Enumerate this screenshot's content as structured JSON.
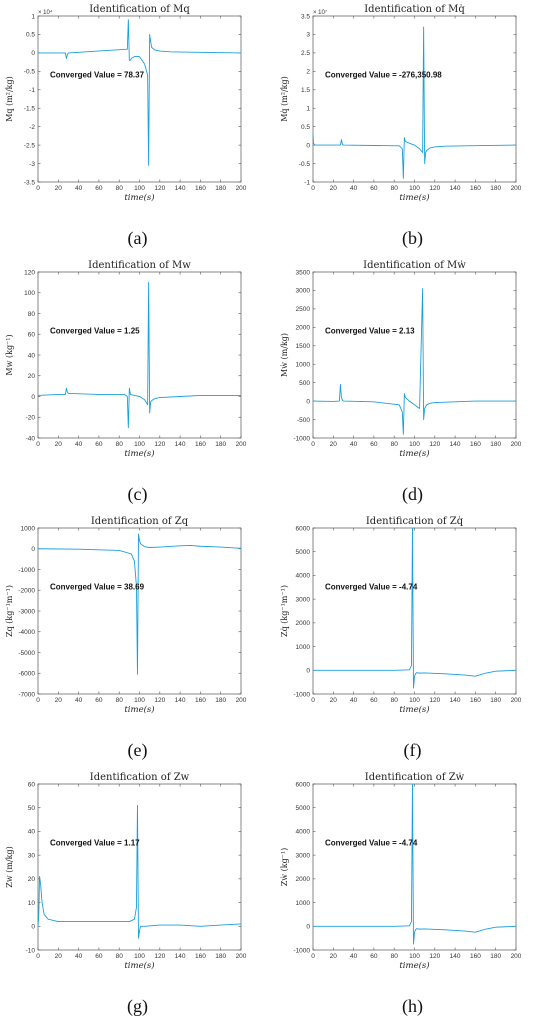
{
  "chart_data": [
    {
      "type": "line",
      "title": "Identification of Mq",
      "xlabel": "time(s)",
      "ylabel": "Mq (m²/kg)",
      "y_exponent": "× 10⁴",
      "xlim": [
        0,
        200
      ],
      "ylim": [
        -3.5,
        1
      ],
      "xticks": [
        0,
        20,
        40,
        60,
        80,
        100,
        120,
        140,
        160,
        180,
        200
      ],
      "yticks": [
        -3.5,
        -3,
        -2.5,
        -2,
        -1.5,
        -1,
        -0.5,
        0,
        0.5,
        1
      ],
      "annotation": "Converged Value = 78.37",
      "caption": "(a)",
      "color": "#1aa0d8",
      "series": [
        {
          "x": [
            0,
            27,
            28,
            29,
            30,
            88,
            89,
            90,
            91,
            92,
            95,
            100,
            105,
            108,
            109,
            110,
            111,
            112,
            115,
            120,
            130,
            150,
            200
          ],
          "y": [
            0,
            0,
            -0.15,
            -0.05,
            0,
            0.1,
            0.9,
            -0.2,
            -0.2,
            -0.15,
            -0.1,
            -0.1,
            -0.3,
            -0.6,
            -3.05,
            0.5,
            0.3,
            0.15,
            0.08,
            0.05,
            0.03,
            0.02,
            0
          ]
        }
      ]
    },
    {
      "type": "line",
      "title": "Identification of Mq̇",
      "xlabel": "time(s)",
      "ylabel": "Mq̇ (m²/kg)",
      "y_exponent": "× 10⁷",
      "xlim": [
        0,
        200
      ],
      "ylim": [
        -1,
        3.5
      ],
      "xticks": [
        0,
        20,
        40,
        60,
        80,
        100,
        120,
        140,
        160,
        180,
        200
      ],
      "yticks": [
        -1,
        -0.5,
        0,
        0.5,
        1,
        1.5,
        2,
        2.5,
        3,
        3.5
      ],
      "annotation": "Converged Value = -276,350.98",
      "caption": "(b)",
      "color": "#1aa0d8",
      "series": [
        {
          "x": [
            0,
            0.5,
            2,
            27,
            28,
            29,
            30,
            85,
            88,
            89,
            90,
            91,
            95,
            100,
            105,
            108,
            109,
            110,
            111,
            112,
            115,
            120,
            130,
            150,
            200
          ],
          "y": [
            0.3,
            0.05,
            0,
            0,
            0.15,
            0.02,
            0,
            -0.02,
            -0.1,
            -0.9,
            0.2,
            0.1,
            0.05,
            0,
            -0.1,
            -0.2,
            3.2,
            -0.5,
            -0.2,
            -0.15,
            -0.08,
            -0.05,
            -0.03,
            -0.02,
            0
          ]
        }
      ]
    },
    {
      "type": "line",
      "title": "Identification of Mw",
      "xlabel": "time(s)",
      "ylabel": "Mw (kg⁻¹)",
      "xlim": [
        0,
        200
      ],
      "ylim": [
        -40,
        120
      ],
      "xticks": [
        0,
        20,
        40,
        60,
        80,
        100,
        120,
        140,
        160,
        180,
        200
      ],
      "yticks": [
        -40,
        -20,
        0,
        20,
        40,
        60,
        80,
        100,
        120
      ],
      "annotation": "Converged Value = 1.25",
      "caption": "(c)",
      "color": "#1aa0d8",
      "series": [
        {
          "x": [
            0,
            20,
            27,
            28,
            29,
            30,
            60,
            85,
            88,
            89,
            90,
            91,
            95,
            100,
            105,
            108,
            109,
            110,
            111,
            112,
            115,
            120,
            140,
            160,
            200
          ],
          "y": [
            1,
            2,
            2,
            8,
            4,
            3,
            2,
            2,
            0,
            -30,
            8,
            2,
            1,
            0,
            -3,
            -8,
            110,
            -16,
            -5,
            -4,
            -2,
            -1,
            0,
            1,
            1
          ]
        }
      ]
    },
    {
      "type": "line",
      "title": "Identification of Mẇ",
      "xlabel": "time(s)",
      "ylabel": "Mẇ (m/kg)",
      "xlim": [
        0,
        200
      ],
      "ylim": [
        -1000,
        3500
      ],
      "xticks": [
        0,
        20,
        40,
        60,
        80,
        100,
        120,
        140,
        160,
        180,
        200
      ],
      "yticks": [
        -1000,
        -500,
        0,
        500,
        1000,
        1500,
        2000,
        2500,
        3000,
        3500
      ],
      "annotation": "Converged Value = 2.13",
      "caption": "(d)",
      "color": "#1aa0d8",
      "series": [
        {
          "x": [
            0,
            20,
            26,
            27,
            28,
            29,
            30,
            60,
            85,
            88,
            89,
            90,
            91,
            95,
            100,
            105,
            108,
            109,
            110,
            111,
            112,
            115,
            120,
            140,
            160,
            200
          ],
          "y": [
            0,
            -10,
            0,
            450,
            100,
            20,
            0,
            -20,
            -100,
            -300,
            -900,
            200,
            100,
            0,
            -100,
            -200,
            3050,
            -500,
            -200,
            -150,
            -100,
            -60,
            -40,
            -20,
            0,
            0
          ]
        }
      ]
    },
    {
      "type": "line",
      "title": "Identification of Zq",
      "xlabel": "time(s)",
      "ylabel": "Zq (kg⁻¹m⁻¹)",
      "xlim": [
        0,
        200
      ],
      "ylim": [
        -7000,
        1000
      ],
      "xticks": [
        0,
        20,
        40,
        60,
        80,
        100,
        120,
        140,
        160,
        180,
        200
      ],
      "yticks": [
        -7000,
        -6000,
        -5000,
        -4000,
        -3000,
        -2000,
        -1000,
        0,
        1000
      ],
      "annotation": "Converged Value = 38.69",
      "caption": "(e)",
      "color": "#1aa0d8",
      "series": [
        {
          "x": [
            0,
            40,
            80,
            92,
            95,
            97,
            98,
            99,
            100,
            101,
            102,
            105,
            110,
            120,
            140,
            150,
            160,
            180,
            200
          ],
          "y": [
            0,
            -20,
            -80,
            -250,
            -600,
            -1800,
            -6050,
            700,
            400,
            250,
            200,
            100,
            60,
            80,
            140,
            160,
            120,
            80,
            20
          ]
        }
      ]
    },
    {
      "type": "line",
      "title": "Identification of Zq̇",
      "xlabel": "time(s)",
      "ylabel": "Zq̇ (kg⁻¹m⁻¹)",
      "xlim": [
        0,
        200
      ],
      "ylim": [
        -1000,
        6000
      ],
      "xticks": [
        0,
        20,
        40,
        60,
        80,
        100,
        120,
        140,
        160,
        180,
        200
      ],
      "yticks": [
        -1000,
        0,
        1000,
        2000,
        3000,
        4000,
        5000,
        6000
      ],
      "annotation": "Converged Value = -4.74",
      "caption": "(f)",
      "color": "#1aa0d8",
      "series": [
        {
          "x": [
            0,
            40,
            80,
            95,
            97,
            98,
            99,
            100,
            101,
            102,
            105,
            110,
            130,
            150,
            160,
            170,
            180,
            200
          ],
          "y": [
            0,
            0,
            0,
            20,
            200,
            6000,
            -750,
            -250,
            -150,
            -100,
            -120,
            -110,
            -150,
            -200,
            -250,
            -120,
            -40,
            0
          ]
        }
      ]
    },
    {
      "type": "line",
      "title": "Identification of Zw",
      "xlabel": "time(s)",
      "ylabel": "Zw (m/kg)",
      "xlim": [
        0,
        200
      ],
      "ylim": [
        -10,
        60
      ],
      "xticks": [
        0,
        20,
        40,
        60,
        80,
        100,
        120,
        140,
        160,
        180,
        200
      ],
      "yticks": [
        -10,
        0,
        10,
        20,
        30,
        40,
        50,
        60
      ],
      "annotation": "Converged Value = 1.17",
      "caption": "(g)",
      "color": "#1aa0d8",
      "series": [
        {
          "x": [
            0,
            0.8,
            1.5,
            2.5,
            4,
            6,
            10,
            20,
            60,
            90,
            95,
            97,
            98,
            99,
            100,
            101,
            105,
            120,
            140,
            160,
            180,
            200
          ],
          "y": [
            0,
            5,
            21,
            18,
            10,
            5,
            3,
            2,
            2,
            2,
            3,
            8,
            51,
            -5,
            -2,
            0,
            0,
            0.5,
            0.5,
            0,
            0.5,
            1
          ]
        }
      ]
    },
    {
      "type": "line",
      "title": "Identification of Zẇ",
      "xlabel": "time(s)",
      "ylabel": "Zẇ (kg⁻¹)",
      "xlim": [
        0,
        200
      ],
      "ylim": [
        -1000,
        6000
      ],
      "xticks": [
        0,
        20,
        40,
        60,
        80,
        100,
        120,
        140,
        160,
        180,
        200
      ],
      "yticks": [
        -1000,
        0,
        1000,
        2000,
        3000,
        4000,
        5000,
        6000
      ],
      "annotation": "Converged Value = -4.74",
      "caption": "(h)",
      "color": "#1aa0d8",
      "series": [
        {
          "x": [
            0,
            40,
            80,
            95,
            97,
            98,
            99,
            100,
            101,
            102,
            105,
            110,
            130,
            150,
            160,
            170,
            180,
            200
          ],
          "y": [
            0,
            0,
            0,
            20,
            200,
            6000,
            -750,
            -250,
            -150,
            -100,
            -120,
            -110,
            -150,
            -200,
            -250,
            -120,
            -40,
            0
          ]
        }
      ]
    }
  ]
}
